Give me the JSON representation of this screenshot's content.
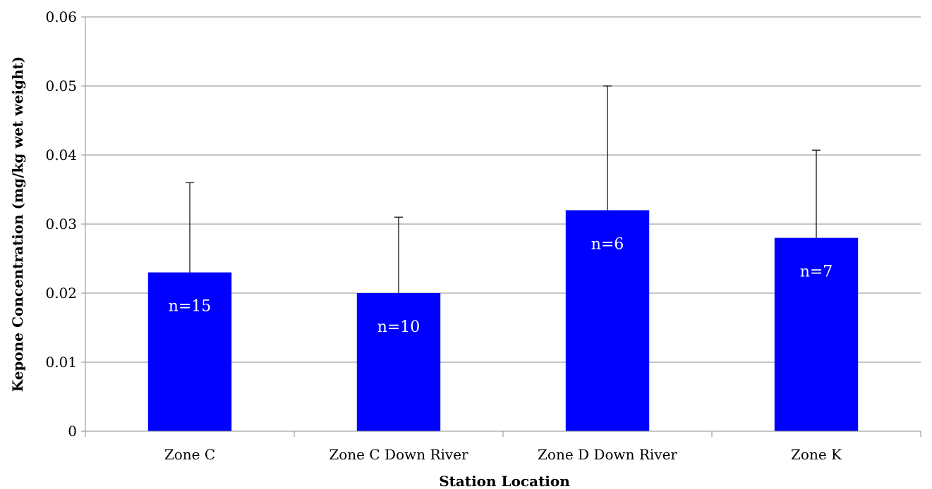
{
  "chart_data": {
    "type": "bar",
    "title": "",
    "xlabel": "Station Location",
    "ylabel": "Kepone Concentration (mg/kg wet weight)",
    "ylim": [
      0,
      0.06
    ],
    "yticks": [
      "0",
      "0.01",
      "0.02",
      "0.03",
      "0.04",
      "0.05",
      "0.06"
    ],
    "grid": true,
    "bar_color": "#0000FF",
    "categories": [
      "Zone C",
      "Zone C Down River",
      "Zone D Down River",
      "Zone K"
    ],
    "values": [
      0.023,
      0.02,
      0.032,
      0.028
    ],
    "error_upper": [
      0.036,
      0.031,
      0.05,
      0.0407
    ],
    "data_labels": [
      "n=15",
      "n=10",
      "n=6",
      "n=7"
    ]
  }
}
